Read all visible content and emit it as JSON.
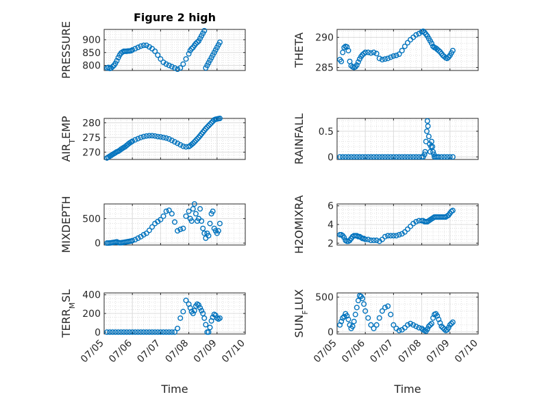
{
  "figure": {
    "title": "Figure 2 high",
    "marker_color": "#0072BD",
    "x_tick_labels": [
      "07/05",
      "07/06",
      "07/07",
      "07/08",
      "07/09",
      "07/10"
    ],
    "x_label": "Time"
  },
  "chart_data": [
    {
      "type": "scatter",
      "title": "Figure 2 high",
      "ylabel": "PRESSURE",
      "yticks": [
        800,
        850,
        900
      ],
      "ylim": [
        780,
        940
      ],
      "xlim": [
        0,
        5
      ],
      "grid": true,
      "x": [
        0.1,
        0.15,
        0.2,
        0.25,
        0.3,
        0.35,
        0.4,
        0.45,
        0.5,
        0.55,
        0.6,
        0.65,
        0.7,
        0.75,
        0.8,
        0.85,
        0.9,
        0.95,
        1.0,
        1.1,
        1.2,
        1.3,
        1.4,
        1.5,
        1.6,
        1.7,
        1.8,
        1.9,
        2.0,
        2.1,
        2.2,
        2.3,
        2.4,
        2.5,
        2.6,
        2.7,
        2.8,
        2.9,
        3.0,
        3.05,
        3.1,
        3.15,
        3.2,
        3.25,
        3.3,
        3.35,
        3.4,
        3.45,
        3.5,
        3.55,
        3.6,
        3.65,
        3.7,
        3.75,
        3.8,
        3.85,
        3.9,
        3.95,
        4.0,
        4.05,
        4.1
      ],
      "y": [
        790,
        792,
        788,
        790,
        795,
        800,
        808,
        818,
        830,
        840,
        848,
        852,
        855,
        855,
        855,
        856,
        856,
        857,
        860,
        865,
        870,
        875,
        878,
        878,
        872,
        865,
        855,
        840,
        825,
        812,
        805,
        800,
        795,
        790,
        785,
        790,
        805,
        825,
        845,
        858,
        865,
        870,
        878,
        885,
        890,
        895,
        905,
        915,
        925,
        935,
        790,
        800,
        810,
        820,
        830,
        840,
        850,
        860,
        870,
        880,
        890
      ]
    },
    {
      "type": "scatter",
      "ylabel": "THETA",
      "yticks": [
        285,
        290
      ],
      "ylim": [
        284.5,
        291.3
      ],
      "xlim": [
        0,
        5
      ],
      "grid": true,
      "x": [
        0.1,
        0.15,
        0.2,
        0.25,
        0.3,
        0.35,
        0.4,
        0.45,
        0.5,
        0.55,
        0.6,
        0.65,
        0.7,
        0.75,
        0.8,
        0.85,
        0.9,
        0.95,
        1.0,
        1.1,
        1.2,
        1.3,
        1.4,
        1.5,
        1.6,
        1.7,
        1.8,
        1.9,
        2.0,
        2.1,
        2.2,
        2.3,
        2.4,
        2.5,
        2.6,
        2.7,
        2.8,
        2.9,
        3.0,
        3.05,
        3.1,
        3.15,
        3.2,
        3.25,
        3.3,
        3.35,
        3.4,
        3.45,
        3.5,
        3.55,
        3.6,
        3.65,
        3.7,
        3.75,
        3.8,
        3.85,
        3.9,
        3.95,
        4.0,
        4.05,
        4.1
      ],
      "y": [
        286.3,
        286.0,
        287.5,
        288.3,
        288.5,
        288.4,
        287.8,
        286.0,
        285.3,
        285.1,
        285.0,
        285.1,
        285.4,
        285.9,
        286.4,
        286.8,
        287.1,
        287.3,
        287.5,
        287.5,
        287.4,
        287.5,
        287.3,
        286.5,
        286.3,
        286.4,
        286.5,
        286.7,
        286.9,
        287.0,
        287.2,
        287.8,
        288.5,
        289.1,
        289.6,
        290.0,
        290.4,
        290.6,
        290.9,
        291.0,
        290.8,
        290.5,
        290.2,
        289.8,
        289.4,
        289.0,
        288.5,
        288.3,
        288.2,
        288.0,
        287.8,
        287.6,
        287.3,
        287.0,
        286.8,
        286.6,
        286.5,
        286.7,
        287.0,
        287.4,
        287.8
      ]
    },
    {
      "type": "scatter",
      "ylabel": "AIR_TEMP",
      "yticks": [
        270,
        275,
        280
      ],
      "ylim": [
        267.5,
        281.5
      ],
      "xlim": [
        0,
        5
      ],
      "grid": true,
      "x": [
        0.1,
        0.15,
        0.2,
        0.25,
        0.3,
        0.35,
        0.4,
        0.45,
        0.5,
        0.55,
        0.6,
        0.65,
        0.7,
        0.75,
        0.8,
        0.85,
        0.9,
        0.95,
        1.0,
        1.1,
        1.2,
        1.3,
        1.4,
        1.5,
        1.6,
        1.7,
        1.8,
        1.9,
        2.0,
        2.1,
        2.2,
        2.3,
        2.4,
        2.5,
        2.6,
        2.7,
        2.8,
        2.9,
        3.0,
        3.05,
        3.1,
        3.15,
        3.2,
        3.25,
        3.3,
        3.35,
        3.4,
        3.45,
        3.5,
        3.55,
        3.6,
        3.65,
        3.7,
        3.75,
        3.8,
        3.85,
        3.9,
        3.95,
        4.0,
        4.05,
        4.1
      ],
      "y": [
        268.0,
        268.3,
        268.6,
        268.9,
        269.2,
        269.5,
        269.8,
        270.1,
        270.3,
        270.6,
        271.0,
        271.3,
        271.6,
        271.9,
        272.3,
        272.7,
        273.1,
        273.4,
        273.7,
        274.2,
        274.6,
        275.0,
        275.3,
        275.5,
        275.6,
        275.6,
        275.5,
        275.3,
        275.2,
        275.0,
        274.8,
        274.5,
        274.0,
        273.5,
        273.0,
        272.5,
        272.0,
        271.8,
        271.9,
        272.2,
        272.6,
        273.0,
        273.5,
        274.0,
        274.5,
        275.0,
        275.6,
        276.2,
        276.8,
        277.4,
        278.0,
        278.5,
        279.0,
        279.5,
        280.0,
        280.5,
        281.0,
        281.2,
        281.3,
        281.4,
        281.5
      ]
    },
    {
      "type": "scatter",
      "ylabel": "RAINFALL",
      "yticks": [
        0,
        0.5
      ],
      "ylim": [
        -0.05,
        0.75
      ],
      "xlim": [
        0,
        5
      ],
      "grid": true,
      "x": [
        0.1,
        0.2,
        0.3,
        0.4,
        0.5,
        0.6,
        0.7,
        0.8,
        0.9,
        1.0,
        1.1,
        1.2,
        1.3,
        1.4,
        1.5,
        1.6,
        1.7,
        1.8,
        1.9,
        2.0,
        2.1,
        2.2,
        2.3,
        2.4,
        2.5,
        2.6,
        2.7,
        2.8,
        2.9,
        3.0,
        3.05,
        3.1,
        3.12,
        3.15,
        3.18,
        3.2,
        3.22,
        3.25,
        3.28,
        3.3,
        3.33,
        3.35,
        3.38,
        3.4,
        3.43,
        3.45,
        3.5,
        3.55,
        3.6,
        3.7,
        3.8,
        3.9,
        4.0,
        4.1
      ],
      "y": [
        0,
        0,
        0,
        0,
        0,
        0,
        0,
        0,
        0,
        0,
        0,
        0,
        0,
        0,
        0,
        0,
        0,
        0,
        0,
        0,
        0,
        0,
        0,
        0,
        0,
        0,
        0,
        0,
        0,
        0,
        0,
        0.05,
        0.1,
        0.3,
        0.5,
        0.7,
        0.6,
        0.4,
        0.25,
        0.1,
        0.2,
        0.3,
        0.2,
        0.1,
        0.05,
        0,
        0,
        0,
        0,
        0,
        0,
        0,
        0,
        0
      ]
    },
    {
      "type": "scatter",
      "ylabel": "MIXDEPTH",
      "yticks": [
        0,
        500
      ],
      "ylim": [
        -40,
        800
      ],
      "xlim": [
        0,
        5
      ],
      "grid": true,
      "x": [
        0.1,
        0.15,
        0.2,
        0.25,
        0.3,
        0.35,
        0.4,
        0.45,
        0.5,
        0.55,
        0.6,
        0.65,
        0.7,
        0.75,
        0.8,
        0.85,
        0.9,
        0.95,
        1.0,
        1.1,
        1.2,
        1.3,
        1.4,
        1.5,
        1.6,
        1.7,
        1.8,
        1.9,
        2.0,
        2.1,
        2.2,
        2.3,
        2.4,
        2.5,
        2.6,
        2.7,
        2.8,
        2.9,
        3.0,
        3.05,
        3.1,
        3.15,
        3.2,
        3.25,
        3.3,
        3.35,
        3.4,
        3.45,
        3.5,
        3.55,
        3.6,
        3.65,
        3.7,
        3.75,
        3.8,
        3.85,
        3.9,
        3.95,
        4.0,
        4.05,
        4.1
      ],
      "y": [
        0,
        0,
        2,
        5,
        10,
        15,
        20,
        25,
        10,
        5,
        5,
        10,
        15,
        20,
        25,
        30,
        35,
        40,
        50,
        70,
        100,
        130,
        170,
        200,
        260,
        330,
        400,
        440,
        480,
        550,
        650,
        670,
        600,
        430,
        250,
        280,
        300,
        550,
        650,
        500,
        450,
        700,
        800,
        600,
        450,
        500,
        700,
        450,
        300,
        200,
        100,
        200,
        150,
        400,
        600,
        650,
        300,
        250,
        200,
        250,
        400
      ]
    },
    {
      "type": "scatter",
      "ylabel": "H2OMIXRA",
      "yticks": [
        2,
        4,
        6
      ],
      "ylim": [
        1.8,
        6.2
      ],
      "xlim": [
        0,
        5
      ],
      "grid": true,
      "x": [
        0.1,
        0.15,
        0.2,
        0.25,
        0.3,
        0.35,
        0.4,
        0.45,
        0.5,
        0.55,
        0.6,
        0.65,
        0.7,
        0.75,
        0.8,
        0.85,
        0.9,
        0.95,
        1.0,
        1.1,
        1.2,
        1.3,
        1.4,
        1.5,
        1.6,
        1.7,
        1.8,
        1.9,
        2.0,
        2.1,
        2.2,
        2.3,
        2.4,
        2.5,
        2.6,
        2.7,
        2.8,
        2.9,
        3.0,
        3.05,
        3.1,
        3.15,
        3.2,
        3.25,
        3.3,
        3.35,
        3.4,
        3.45,
        3.5,
        3.55,
        3.6,
        3.65,
        3.7,
        3.75,
        3.8,
        3.85,
        3.9,
        3.95,
        4.0,
        4.05,
        4.1
      ],
      "y": [
        2.9,
        2.9,
        2.8,
        2.6,
        2.3,
        2.2,
        2.2,
        2.3,
        2.5,
        2.7,
        2.8,
        2.8,
        2.8,
        2.7,
        2.7,
        2.6,
        2.5,
        2.5,
        2.4,
        2.4,
        2.3,
        2.3,
        2.3,
        2.2,
        2.4,
        2.7,
        2.8,
        2.8,
        2.8,
        2.8,
        2.9,
        3.0,
        3.2,
        3.5,
        3.8,
        4.1,
        4.3,
        4.4,
        4.4,
        4.4,
        4.3,
        4.3,
        4.3,
        4.4,
        4.5,
        4.6,
        4.7,
        4.8,
        4.8,
        4.8,
        4.8,
        4.8,
        4.8,
        4.8,
        4.8,
        4.8,
        4.9,
        5.0,
        5.2,
        5.4,
        5.5
      ]
    },
    {
      "type": "scatter",
      "ylabel": "TERR_MSL",
      "yticks": [
        0,
        200,
        400
      ],
      "ylim": [
        -20,
        420
      ],
      "xlim": [
        0,
        5
      ],
      "grid": true,
      "x": [
        0.1,
        0.2,
        0.3,
        0.4,
        0.5,
        0.6,
        0.7,
        0.8,
        0.9,
        1.0,
        1.1,
        1.2,
        1.3,
        1.4,
        1.5,
        1.6,
        1.7,
        1.8,
        1.9,
        2.0,
        2.1,
        2.2,
        2.3,
        2.4,
        2.5,
        2.6,
        2.7,
        2.8,
        2.9,
        3.0,
        3.05,
        3.1,
        3.15,
        3.2,
        3.25,
        3.3,
        3.35,
        3.4,
        3.45,
        3.5,
        3.55,
        3.6,
        3.65,
        3.7,
        3.75,
        3.8,
        3.85,
        3.9,
        3.95,
        4.0,
        4.05,
        4.1
      ],
      "y": [
        0,
        0,
        0,
        0,
        0,
        0,
        0,
        0,
        0,
        0,
        0,
        0,
        0,
        0,
        0,
        0,
        0,
        0,
        0,
        0,
        0,
        0,
        0,
        0,
        0,
        40,
        150,
        220,
        340,
        300,
        260,
        220,
        200,
        230,
        280,
        300,
        290,
        260,
        230,
        200,
        150,
        80,
        0,
        0,
        50,
        120,
        160,
        190,
        180,
        150,
        140,
        150
      ]
    },
    {
      "type": "scatter",
      "ylabel": "SUN_FLUX",
      "yticks": [
        0,
        500
      ],
      "ylim": [
        -30,
        560
      ],
      "xlim": [
        0,
        5
      ],
      "grid": true,
      "x": [
        0.1,
        0.15,
        0.2,
        0.25,
        0.3,
        0.35,
        0.4,
        0.45,
        0.5,
        0.55,
        0.6,
        0.65,
        0.7,
        0.75,
        0.8,
        0.85,
        0.9,
        0.95,
        1.0,
        1.1,
        1.2,
        1.3,
        1.4,
        1.5,
        1.6,
        1.7,
        1.8,
        1.9,
        2.0,
        2.1,
        2.2,
        2.3,
        2.4,
        2.5,
        2.6,
        2.7,
        2.8,
        2.9,
        3.0,
        3.05,
        3.1,
        3.15,
        3.2,
        3.25,
        3.3,
        3.35,
        3.4,
        3.45,
        3.5,
        3.55,
        3.6,
        3.65,
        3.7,
        3.75,
        3.8,
        3.85,
        3.9,
        3.95,
        4.0,
        4.05,
        4.1
      ],
      "y": [
        100,
        150,
        200,
        220,
        260,
        230,
        180,
        100,
        50,
        80,
        150,
        250,
        350,
        450,
        520,
        510,
        480,
        400,
        300,
        200,
        100,
        50,
        100,
        200,
        300,
        350,
        370,
        250,
        100,
        50,
        20,
        30,
        60,
        100,
        120,
        100,
        80,
        60,
        50,
        30,
        20,
        10,
        40,
        80,
        100,
        120,
        200,
        250,
        260,
        230,
        180,
        130,
        80,
        60,
        40,
        20,
        30,
        60,
        100,
        120,
        140
      ]
    }
  ]
}
